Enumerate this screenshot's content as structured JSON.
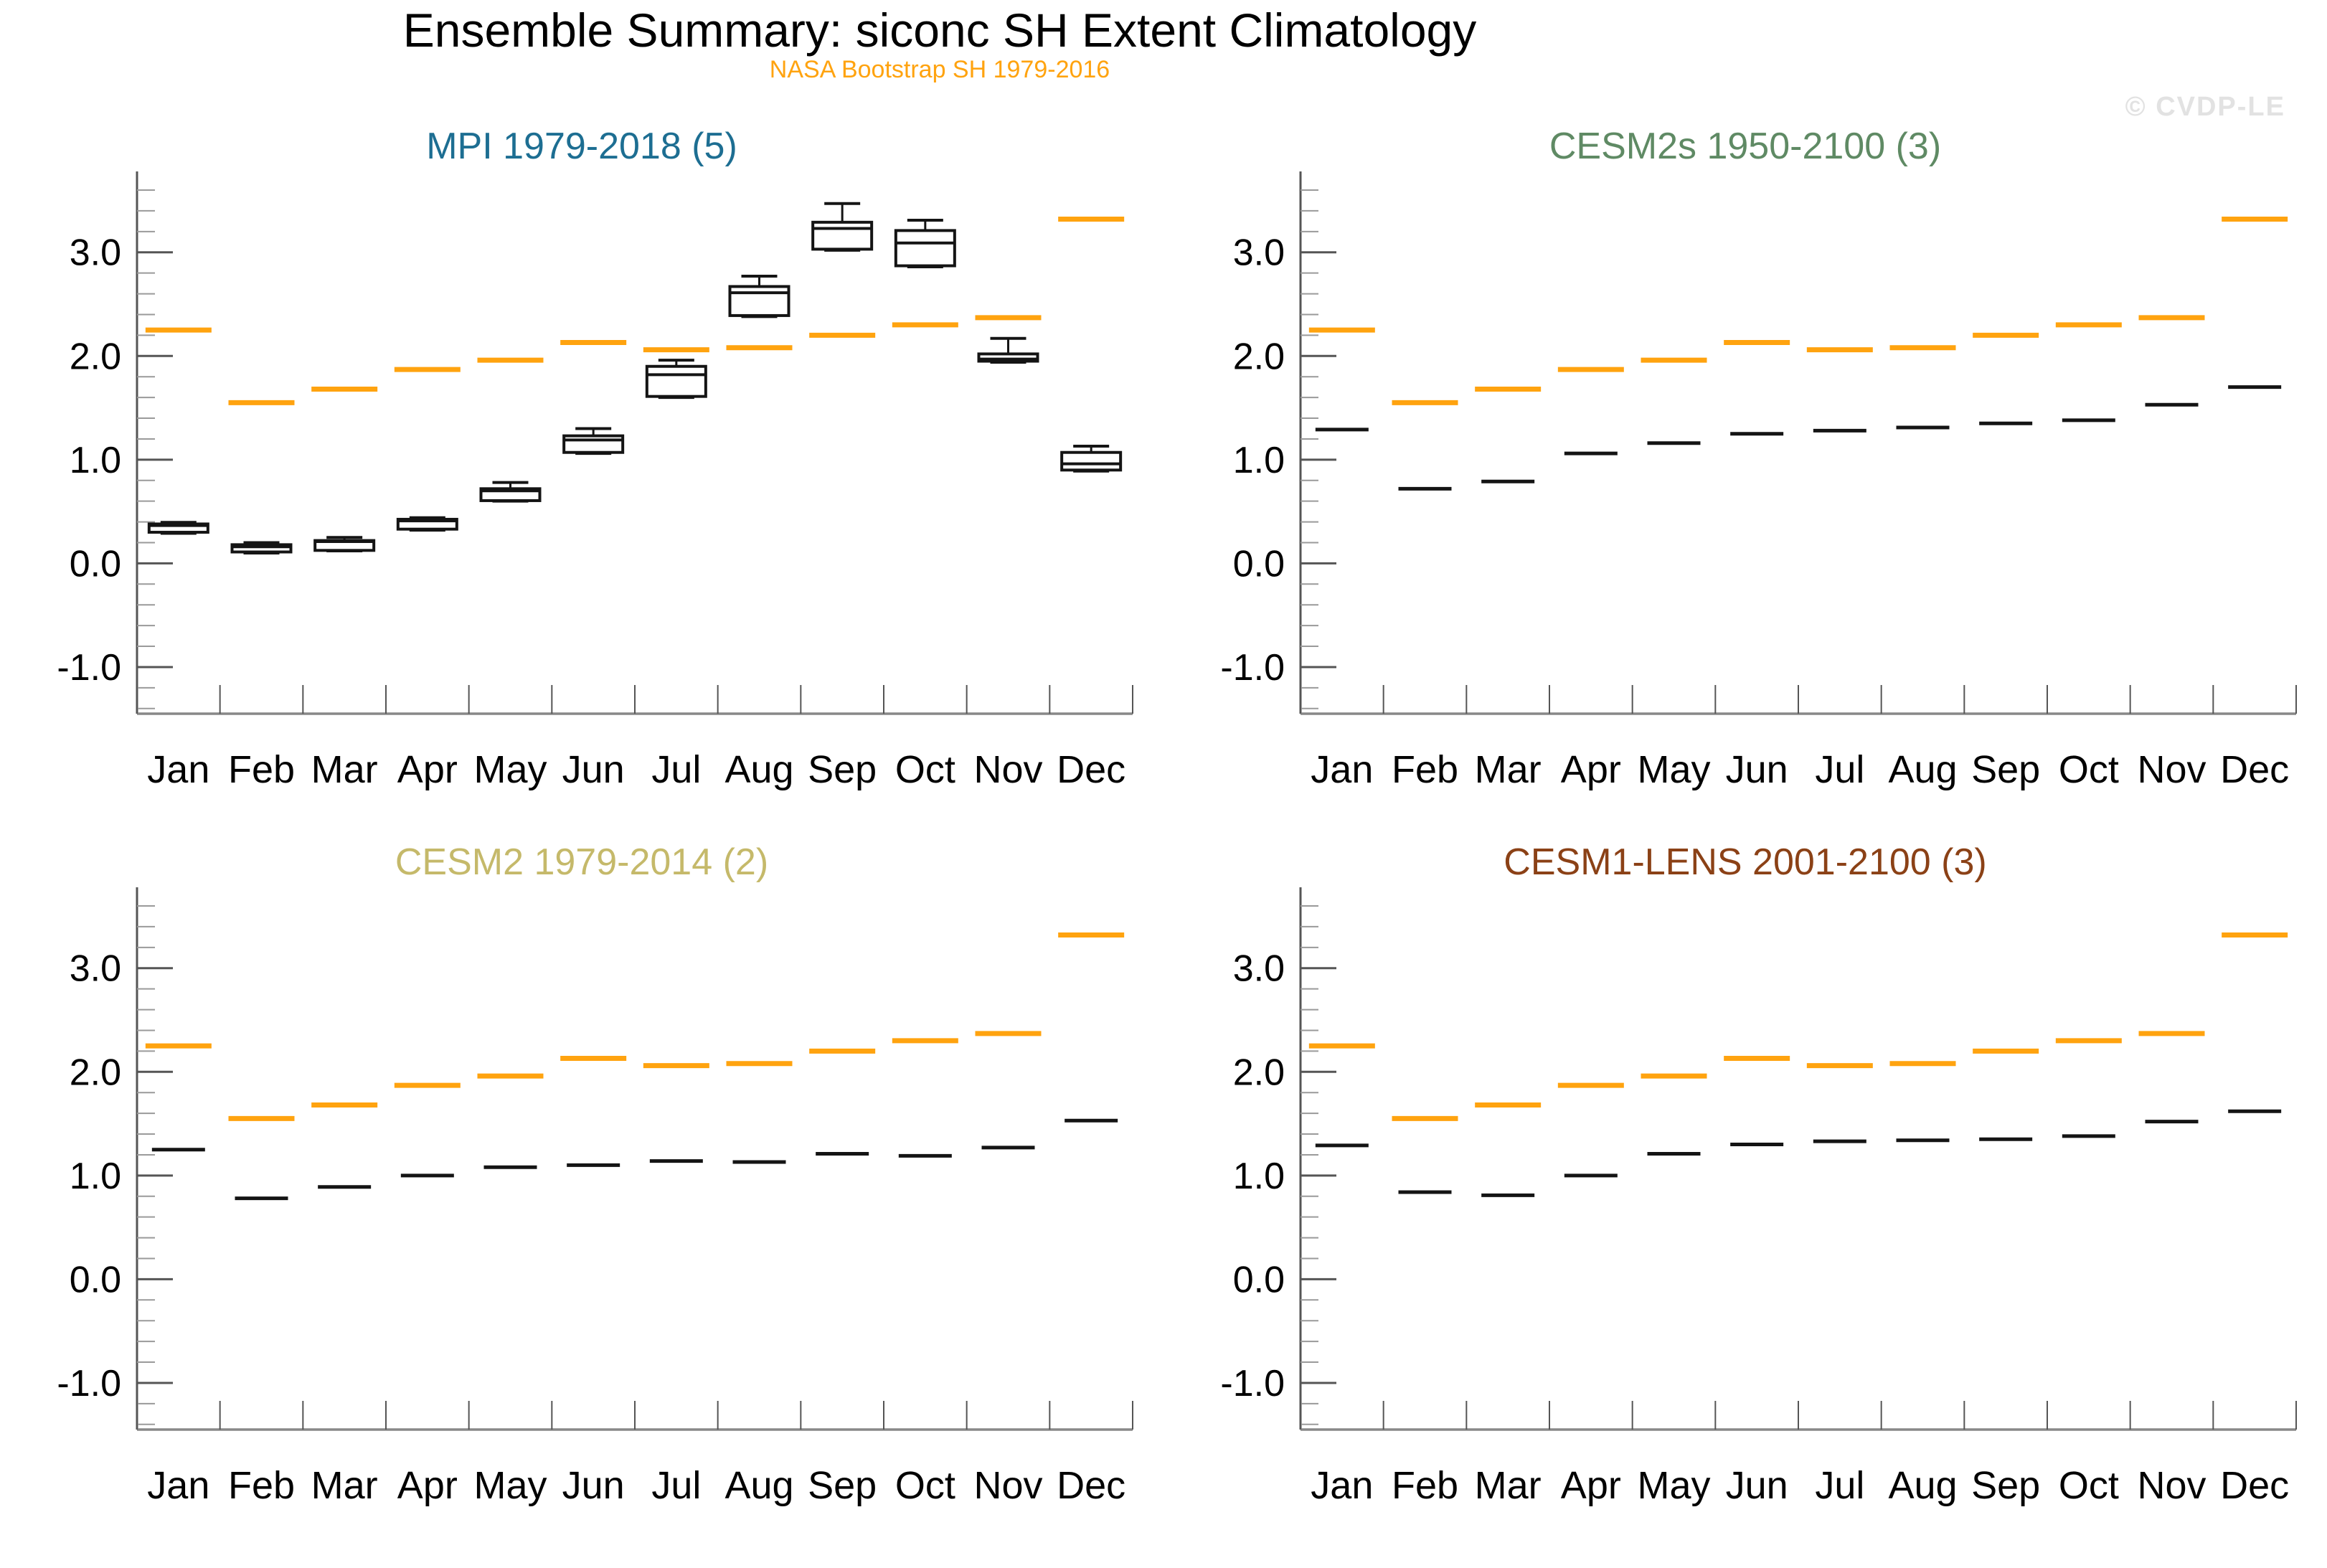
{
  "page": {
    "title": "Ensemble Summary: siconc SH Extent Climatology",
    "subtitle": "NASA Bootstrap SH 1979-2016",
    "watermark": "© CVDP-LE"
  },
  "colors": {
    "obs": "#FFA30F",
    "model": "#141414",
    "box_fill": "#ffffff",
    "axis": "#555555",
    "minor_tick": "#9a9a9a",
    "bottom_axis": "#888888",
    "label": "#000000",
    "watermark": "#E2E2E2"
  },
  "legend": {
    "obs_series": "NASA Bootstrap SH 1979-2016",
    "obs_glyph": "orange-dash",
    "model_glyph": "black-dash-or-box"
  },
  "axes": {
    "months": [
      "Jan",
      "Feb",
      "Mar",
      "Apr",
      "May",
      "Jun",
      "Jul",
      "Aug",
      "Sep",
      "Oct",
      "Nov",
      "Dec"
    ],
    "yticks": [
      {
        "v": 3.0,
        "label": "3.0"
      },
      {
        "v": 2.0,
        "label": "2.0"
      },
      {
        "v": 1.0,
        "label": "1.0"
      },
      {
        "v": 0.0,
        "label": "0.0"
      },
      {
        "v": -1.0,
        "label": "-1.0"
      }
    ],
    "ylim": [
      -1.45,
      3.78
    ],
    "minor_step": 0.2,
    "minor_range": [
      -1.4,
      3.6
    ],
    "grid": "off",
    "x_boundary_ticks": 13
  },
  "chart_data": [
    {
      "type": "box",
      "panel": "top-left",
      "title": "MPI 1979-2018 (5)",
      "title_color": "#1D6E92",
      "obs": [
        2.25,
        1.55,
        1.68,
        1.87,
        1.96,
        2.13,
        2.06,
        2.08,
        2.2,
        2.3,
        2.37,
        3.32
      ],
      "boxes": [
        {
          "lo": 0.29,
          "q1": 0.3,
          "med": 0.365,
          "q3": 0.38,
          "hi": 0.395
        },
        {
          "lo": 0.1,
          "q1": 0.11,
          "med": 0.16,
          "q3": 0.18,
          "hi": 0.2
        },
        {
          "lo": 0.12,
          "q1": 0.125,
          "med": 0.21,
          "q3": 0.22,
          "hi": 0.25
        },
        {
          "lo": 0.32,
          "q1": 0.33,
          "med": 0.41,
          "q3": 0.425,
          "hi": 0.44
        },
        {
          "lo": 0.6,
          "q1": 0.605,
          "med": 0.7,
          "q3": 0.72,
          "hi": 0.78
        },
        {
          "lo": 1.06,
          "q1": 1.07,
          "med": 1.19,
          "q3": 1.23,
          "hi": 1.3
        },
        {
          "lo": 1.6,
          "q1": 1.61,
          "med": 1.82,
          "q3": 1.9,
          "hi": 1.96
        },
        {
          "lo": 2.38,
          "q1": 2.39,
          "med": 2.61,
          "q3": 2.67,
          "hi": 2.77
        },
        {
          "lo": 3.02,
          "q1": 3.03,
          "med": 3.23,
          "q3": 3.29,
          "hi": 3.47
        },
        {
          "lo": 2.86,
          "q1": 2.87,
          "med": 3.09,
          "q3": 3.21,
          "hi": 3.31
        },
        {
          "lo": 1.94,
          "q1": 1.95,
          "med": 1.97,
          "q3": 2.02,
          "hi": 2.17
        },
        {
          "lo": 0.89,
          "q1": 0.9,
          "med": 0.96,
          "q3": 1.07,
          "hi": 1.13
        }
      ]
    },
    {
      "type": "dash",
      "panel": "top-right",
      "title": "CESM2s 1950-2100 (3)",
      "title_color": "#5F8A64",
      "obs": [
        2.25,
        1.55,
        1.68,
        1.87,
        1.96,
        2.13,
        2.06,
        2.08,
        2.2,
        2.3,
        2.37,
        3.32
      ],
      "means": [
        1.29,
        0.72,
        0.79,
        1.06,
        1.16,
        1.25,
        1.28,
        1.31,
        1.35,
        1.38,
        1.53,
        1.7
      ]
    },
    {
      "type": "dash",
      "panel": "bottom-left",
      "title": "CESM2 1979-2014 (2)",
      "title_color": "#C5B96A",
      "obs": [
        2.25,
        1.55,
        1.68,
        1.87,
        1.96,
        2.13,
        2.06,
        2.08,
        2.2,
        2.3,
        2.37,
        3.32
      ],
      "means": [
        1.25,
        0.78,
        0.89,
        1.0,
        1.08,
        1.1,
        1.14,
        1.13,
        1.21,
        1.19,
        1.27,
        1.53
      ]
    },
    {
      "type": "dash",
      "panel": "bottom-right",
      "title": "CESM1-LENS 2001-2100 (3)",
      "title_color": "#8B4116",
      "obs": [
        2.25,
        1.55,
        1.68,
        1.87,
        1.96,
        2.13,
        2.06,
        2.08,
        2.2,
        2.3,
        2.37,
        3.32
      ],
      "means": [
        1.29,
        0.84,
        0.81,
        1.0,
        1.21,
        1.3,
        1.33,
        1.34,
        1.35,
        1.38,
        1.52,
        1.62
      ]
    }
  ]
}
